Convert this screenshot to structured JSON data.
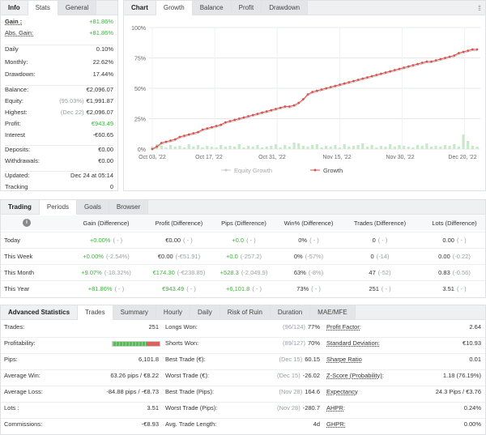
{
  "info": {
    "tabs": [
      "Info",
      "Stats",
      "General"
    ],
    "rows": [
      {
        "label": "Gain :",
        "value": "+81.86%"
      },
      {
        "label": "Abs. Gain:",
        "value": "+81.86%"
      },
      {
        "label": "Daily",
        "value": "0.10%"
      },
      {
        "label": "Monthly:",
        "value": "22.62%"
      },
      {
        "label": "Drawdown:",
        "value": "17.44%"
      },
      {
        "label": "Balance:",
        "value": "€2,096.07"
      },
      {
        "label": "Equity:",
        "note": "(95.03%)",
        "value": "€1,991.87"
      },
      {
        "label": "Highest:",
        "note": "(Dec 22)",
        "value": "€2,096.07"
      },
      {
        "label": "Profit:",
        "value": "€943.49"
      },
      {
        "label": "Interest",
        "value": "-€60.65"
      },
      {
        "label": "Deposits:",
        "value": "€0.00"
      },
      {
        "label": "Withdrawals:",
        "value": "€0.00"
      },
      {
        "label": "Updated:",
        "value": "Dec 24 at 05:14"
      },
      {
        "label": "Tracking",
        "value": "0"
      }
    ]
  },
  "chart_panel": {
    "tabs": [
      "Chart",
      "Growth",
      "Balance",
      "Profit",
      "Drawdown"
    ],
    "menu_icon": "ellipsis-icon"
  },
  "chart_data": {
    "type": "line",
    "yticks": [
      "100%",
      "75%",
      "50%",
      "25%",
      "0%"
    ],
    "ylim": [
      0,
      100
    ],
    "xticks": [
      "Oct 03, '22",
      "Oct 17, '22",
      "Oct 31, '22",
      "Nov 15, '22",
      "Nov 30, '22",
      "Dec 20, '22"
    ],
    "legend": [
      "Equity Growth",
      "Growth"
    ],
    "series": [
      {
        "name": "Growth",
        "values": [
          0,
          2,
          5,
          6,
          7,
          8,
          10,
          11,
          12,
          13,
          14,
          16,
          17,
          18,
          19,
          20,
          22,
          23,
          24,
          25,
          26,
          27,
          28,
          29,
          30,
          31,
          32,
          33,
          34,
          35,
          35,
          36,
          38,
          41,
          45,
          47,
          48,
          49,
          50,
          51,
          52,
          53,
          54,
          55,
          56,
          57,
          58,
          59,
          60,
          61,
          62,
          63,
          64,
          65,
          66,
          67,
          68,
          69,
          70,
          71,
          72,
          72,
          73,
          74,
          75,
          76,
          77,
          79,
          80,
          81,
          82,
          82
        ]
      },
      {
        "name": "Equity Growth",
        "values": [
          0,
          1,
          4,
          5,
          6,
          7,
          9,
          10,
          11,
          12,
          13,
          15,
          16,
          17,
          18,
          19,
          21,
          22,
          23,
          24,
          25,
          26,
          27,
          28,
          29,
          30,
          31,
          32,
          33,
          34,
          34,
          35,
          37,
          40,
          44,
          46,
          47,
          48,
          49,
          50,
          51,
          52,
          53,
          54,
          55,
          56,
          57,
          58,
          59,
          60,
          61,
          62,
          63,
          64,
          65,
          66,
          67,
          68,
          69,
          70,
          71,
          71,
          72,
          73,
          74,
          75,
          76,
          78,
          79,
          80,
          81,
          81
        ]
      }
    ],
    "bars": [
      3,
      6,
      4,
      2,
      5,
      3,
      4,
      2,
      6,
      3,
      5,
      2,
      4,
      3,
      2,
      5,
      3,
      4,
      3,
      6,
      2,
      4,
      3,
      5,
      2,
      3,
      4,
      6,
      2,
      5,
      3,
      8,
      7,
      4,
      3,
      5,
      6,
      2,
      4,
      3,
      5,
      2,
      6,
      3,
      4,
      5,
      7,
      3,
      5,
      2,
      4,
      3,
      6,
      3,
      5,
      4,
      3,
      2,
      5,
      4,
      7,
      3,
      4,
      3,
      5,
      4,
      6,
      3,
      18,
      10,
      4,
      3
    ],
    "colors": {
      "growth": "#d9534f",
      "equity": "#c8c8c8",
      "bars": "#c9e8c9"
    }
  },
  "trading": {
    "tabs": [
      "Trading",
      "Periods",
      "Goals",
      "Browser"
    ],
    "headers": [
      "Gain (Difference)",
      "Profit (Difference)",
      "Pips (Difference)",
      "Win% (Difference)",
      "Trades (Difference)",
      "Lots (Difference)"
    ],
    "rows": [
      {
        "label": "Today",
        "cells": [
          {
            "a": "+0.00%",
            "b": "( - )"
          },
          {
            "a": "€0.00",
            "b": "( - )"
          },
          {
            "a": "+0.0",
            "b": "( - )"
          },
          {
            "a": "0%",
            "b": "( - )"
          },
          {
            "a": "0",
            "b": "( - )"
          },
          {
            "a": "0.00",
            "b": "( - )"
          }
        ]
      },
      {
        "label": "This Week",
        "cells": [
          {
            "a": "+0.00%",
            "b": "(-2.54%)"
          },
          {
            "a": "€0.00",
            "b": "(-€51.91)"
          },
          {
            "a": "+0.0",
            "b": "(-257.2)"
          },
          {
            "a": "0%",
            "b": "(-57%)"
          },
          {
            "a": "0",
            "b": "(-14)"
          },
          {
            "a": "0.00",
            "b": "(-0.22)"
          }
        ]
      },
      {
        "label": "This Month",
        "cells": [
          {
            "a": "+9.07%",
            "b": "(-18.32%)"
          },
          {
            "a": "€174.30",
            "b": "(-€238.85)"
          },
          {
            "a": "+528.3",
            "b": "(-2,049.9)"
          },
          {
            "a": "63%",
            "b": "(-8%)"
          },
          {
            "a": "47",
            "b": "(-52)"
          },
          {
            "a": "0.83",
            "b": "(-0.56)"
          }
        ]
      },
      {
        "label": "This Year",
        "cells": [
          {
            "a": "+81.86%",
            "b": "( - )"
          },
          {
            "a": "€943.49",
            "b": "( - )"
          },
          {
            "a": "+6,101.8",
            "b": "( - )"
          },
          {
            "a": "73%",
            "b": "( - )"
          },
          {
            "a": "251",
            "b": "( - )"
          },
          {
            "a": "3.51",
            "b": "( - )"
          }
        ]
      }
    ]
  },
  "advanced": {
    "tabs": [
      "Advanced Statistics",
      "Trades",
      "Summary",
      "Hourly",
      "Daily",
      "Risk of Ruin",
      "Duration",
      "MAE/MFE"
    ],
    "col1": [
      {
        "label": "Trades:",
        "value": "251"
      },
      {
        "label": "Profitability:",
        "value": ""
      },
      {
        "label": "Pips:",
        "value": "6,101.8"
      },
      {
        "label": "Average Win:",
        "value": "63.26 pips / €8.22"
      },
      {
        "label": "Average Loss:",
        "value": "-84.88 pips / -€8.73"
      },
      {
        "label": "Lots :",
        "value": "3.51"
      },
      {
        "label": "Commissions:",
        "value": "-€8.93"
      }
    ],
    "col2": [
      {
        "label": "Longs Won:",
        "note": "(96/124)",
        "value": "77%"
      },
      {
        "label": "Shorts Won:",
        "note": "(89/127)",
        "value": "70%"
      },
      {
        "label": "Best Trade (€):",
        "note": "(Dec 15)",
        "value": "60.15"
      },
      {
        "label": "Worst Trade (€):",
        "note": "(Dec 15)",
        "value": "-26.02"
      },
      {
        "label": "Best Trade (Pips):",
        "note": "(Nov 28)",
        "value": "164.6"
      },
      {
        "label": "Worst Trade (Pips):",
        "note": "(Nov 28)",
        "value": "-280.7"
      },
      {
        "label": "Avg. Trade Length:",
        "note": "",
        "value": "4d"
      }
    ],
    "col3": [
      {
        "label": "Profit Factor:",
        "value": "2.64"
      },
      {
        "label": "Standard Deviation:",
        "value": "€10.93"
      },
      {
        "label": "Sharpe Ratio",
        "value": "0.01"
      },
      {
        "label": "Z-Score (Probability):",
        "value": "1.18 (76.19%)"
      },
      {
        "label": "Expectancy",
        "value": "24.3 Pips / €3.76"
      },
      {
        "label": "AHPR:",
        "value": "0.24%"
      },
      {
        "label": "GHPR:",
        "value": "0.00%"
      }
    ],
    "profitability": {
      "win_pct": 73,
      "win_color": "#5cb85c",
      "loss_color": "#e06060"
    }
  }
}
